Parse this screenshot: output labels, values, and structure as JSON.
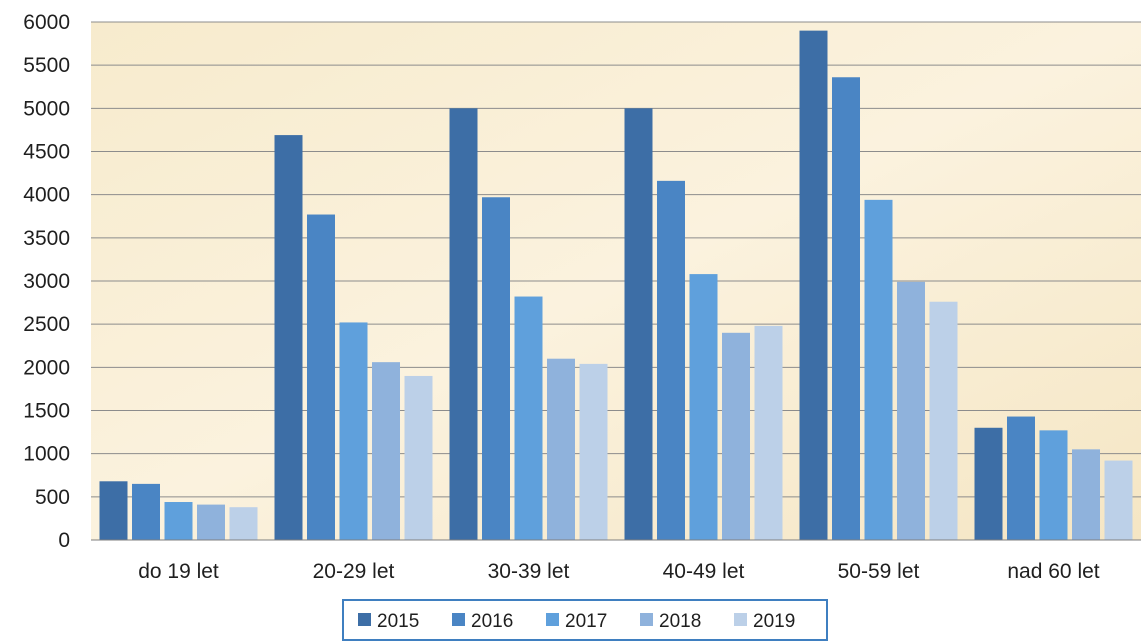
{
  "chart_data": {
    "type": "bar",
    "title": "",
    "xlabel": "",
    "ylabel": "",
    "ylim": [
      0,
      6000
    ],
    "yticks": [
      0,
      500,
      1000,
      1500,
      2000,
      2500,
      3000,
      3500,
      4000,
      4500,
      5000,
      5500,
      6000
    ],
    "grid": true,
    "legend_position": "bottom",
    "categories": [
      "do 19 let",
      "20-29 let",
      "30-39 let",
      "40-49 let",
      "50-59 let",
      "nad 60 let"
    ],
    "series": [
      {
        "name": "2015",
        "color": "#3d6ea6",
        "values": [
          680,
          4690,
          5000,
          5000,
          5900,
          1300
        ]
      },
      {
        "name": "2016",
        "color": "#4a85c4",
        "values": [
          650,
          3770,
          3970,
          4160,
          5360,
          1430
        ]
      },
      {
        "name": "2017",
        "color": "#5fa0dc",
        "values": [
          440,
          2520,
          2820,
          3080,
          3940,
          1270
        ]
      },
      {
        "name": "2018",
        "color": "#8fb2dc",
        "values": [
          410,
          2060,
          2100,
          2400,
          2990,
          1050
        ]
      },
      {
        "name": "2019",
        "color": "#bcd0e8",
        "values": [
          380,
          1900,
          2040,
          2480,
          2760,
          920
        ]
      }
    ]
  }
}
